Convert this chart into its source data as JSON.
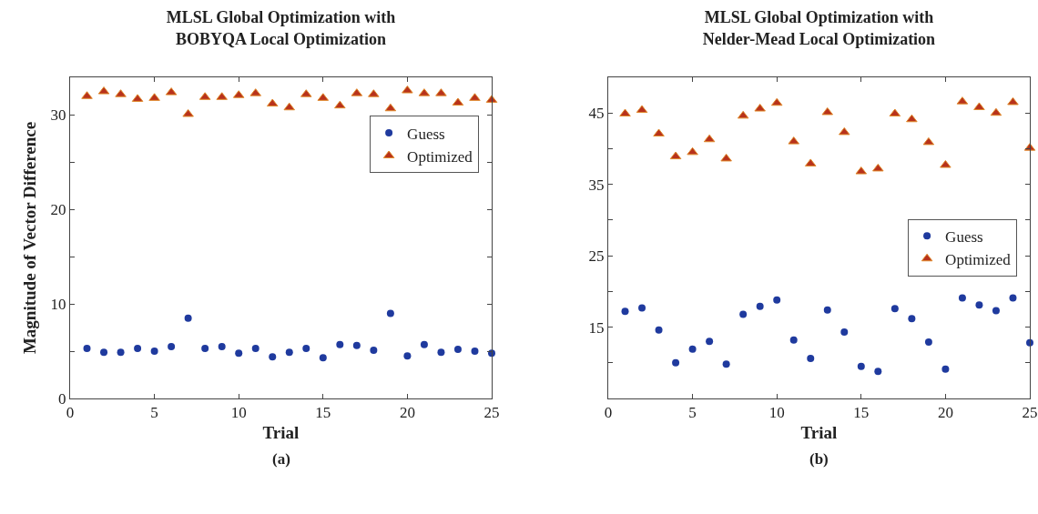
{
  "chart_data": [
    {
      "type": "scatter",
      "title": "MLSL Global Optimization with\nBOBYQA Local Optimization",
      "xlabel": "Trial",
      "ylabel": "Magnitude of Vector Difference",
      "annotations": [
        "(a)"
      ],
      "x": [
        1,
        2,
        3,
        4,
        5,
        6,
        7,
        8,
        9,
        10,
        11,
        12,
        13,
        14,
        15,
        16,
        17,
        18,
        19,
        20,
        21,
        22,
        23,
        24,
        25
      ],
      "series": [
        {
          "name": "Guess",
          "color": "#1f3a9e",
          "marker": "circle",
          "values": [
            5.3,
            4.9,
            4.9,
            5.3,
            5.0,
            5.5,
            8.5,
            5.3,
            5.5,
            4.8,
            5.3,
            4.4,
            4.9,
            5.3,
            4.3,
            5.7,
            5.6,
            5.1,
            9.0,
            4.5,
            5.7,
            4.9,
            5.2,
            5.0,
            4.8
          ]
        },
        {
          "name": "Optimized",
          "color": "#b8321c",
          "marker": "triangle",
          "values": [
            32.0,
            32.5,
            32.2,
            31.7,
            31.8,
            32.4,
            30.1,
            31.9,
            31.9,
            32.1,
            32.3,
            31.2,
            30.8,
            32.2,
            31.8,
            31.0,
            32.3,
            32.2,
            30.7,
            32.6,
            32.3,
            32.3,
            31.3,
            31.8,
            31.6
          ]
        }
      ],
      "xlim": [
        0,
        25
      ],
      "xticks": [
        0,
        5,
        10,
        15,
        20,
        25
      ],
      "ylim": [
        0,
        34
      ],
      "yticks": [
        0,
        {
          "value": 5,
          "label": null
        },
        10,
        {
          "value": 15,
          "label": null
        },
        20,
        {
          "value": 25,
          "label": null
        },
        30
      ],
      "grid": false,
      "legend": "top right"
    },
    {
      "type": "scatter",
      "title": "MLSL Global Optimization with\nNelder-Mead Local Optimization",
      "xlabel": "Trial",
      "annotations": [
        "(b)"
      ],
      "x": [
        1,
        2,
        3,
        4,
        5,
        6,
        7,
        8,
        9,
        10,
        11,
        12,
        13,
        14,
        15,
        16,
        17,
        18,
        19,
        20,
        21,
        22,
        23,
        24,
        25
      ],
      "series": [
        {
          "name": "Guess",
          "color": "#1f3a9e",
          "marker": "circle",
          "values": [
            17.2,
            17.7,
            14.6,
            10.0,
            11.9,
            13.0,
            9.8,
            16.8,
            17.9,
            18.8,
            13.2,
            10.6,
            17.4,
            14.3,
            9.5,
            8.8,
            17.6,
            16.2,
            12.9,
            9.1,
            19.1,
            18.1,
            17.3,
            19.1,
            12.8
          ]
        },
        {
          "name": "Optimized",
          "color": "#b8321c",
          "marker": "triangle",
          "values": [
            44.9,
            45.4,
            42.1,
            38.9,
            39.5,
            41.3,
            38.6,
            44.6,
            45.6,
            46.4,
            41.0,
            37.9,
            45.1,
            42.3,
            36.8,
            37.2,
            44.9,
            44.1,
            40.9,
            37.7,
            46.6,
            45.8,
            45.0,
            46.5,
            40.1
          ]
        }
      ],
      "xlim": [
        0,
        25
      ],
      "xticks": [
        0,
        5,
        10,
        15,
        20,
        25
      ],
      "ylim": [
        5,
        50
      ],
      "yticks": [
        {
          "value": 10,
          "label": null
        },
        15,
        {
          "value": 20,
          "label": null
        },
        25,
        {
          "value": 30,
          "label": null
        },
        35,
        {
          "value": 40,
          "label": null
        },
        45
      ],
      "grid": false,
      "legend": "right"
    }
  ]
}
